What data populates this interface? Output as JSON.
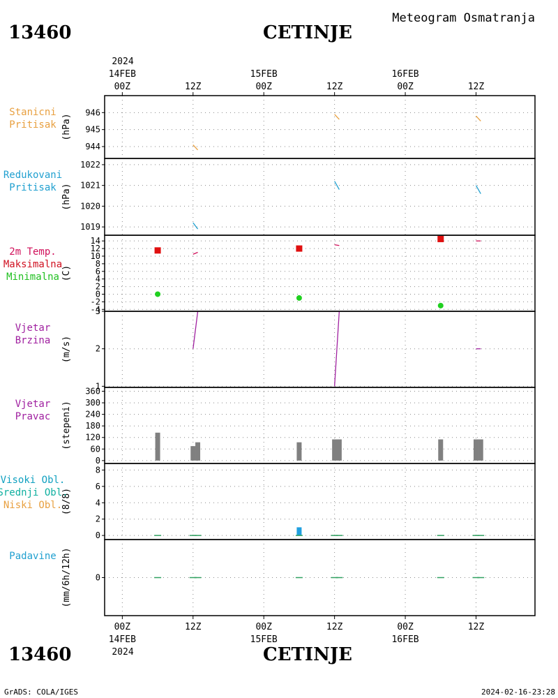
{
  "header": {
    "station_id": "13460",
    "station_name": "CETINJE",
    "product": "Meteogram Osmatranja"
  },
  "time_axis": {
    "year": "2024",
    "ticks": [
      {
        "hour": 0,
        "label": "00Z",
        "date": "14FEB"
      },
      {
        "hour": 12,
        "label": "12Z",
        "date": ""
      },
      {
        "hour": 24,
        "label": "00Z",
        "date": "15FEB"
      },
      {
        "hour": 36,
        "label": "12Z",
        "date": ""
      },
      {
        "hour": 48,
        "label": "00Z",
        "date": "16FEB"
      },
      {
        "hour": 60,
        "label": "12Z",
        "date": ""
      }
    ]
  },
  "footer": {
    "left": "GrADS: COLA/IGES",
    "right": "2024-02-16-23:28"
  },
  "chart_data": [
    {
      "type": "line",
      "panel": "station_pressure",
      "label_lines": [
        "Stanicni",
        "Pritisak"
      ],
      "label_color": "#e8a040",
      "unit": "(hPa)",
      "ylim": [
        943.3,
        947.0
      ],
      "yticks": [
        944,
        945,
        946
      ],
      "series": [
        {
          "color": "#e8a040",
          "segments": [
            [
              [
                12.0,
                944.1
              ],
              [
                12.8,
                943.8
              ]
            ],
            [
              [
                36.0,
                945.9
              ],
              [
                36.8,
                945.6
              ]
            ],
            [
              [
                60.0,
                945.8
              ],
              [
                60.8,
                945.5
              ]
            ]
          ]
        }
      ]
    },
    {
      "type": "line",
      "panel": "reduced_pressure",
      "label_lines": [
        "Redukovani",
        "Pritisak"
      ],
      "label_color": "#20a0d0",
      "unit": "(hPa)",
      "ylim": [
        1018.6,
        1022.3
      ],
      "yticks": [
        1019,
        1020,
        1021,
        1022
      ],
      "series": [
        {
          "color": "#20a0d0",
          "segments": [
            [
              [
                12.0,
                1019.2
              ],
              [
                12.8,
                1018.9
              ]
            ],
            [
              [
                36.0,
                1021.2
              ],
              [
                36.8,
                1020.8
              ]
            ],
            [
              [
                60.0,
                1021.0
              ],
              [
                60.8,
                1020.6
              ]
            ]
          ]
        }
      ]
    },
    {
      "type": "scatter",
      "panel": "temperature",
      "label_lines": [
        "2m Temp.",
        "Maksimalna",
        "Minimalna"
      ],
      "label_colors": [
        "#d0105a",
        "#d01020",
        "#20c020"
      ],
      "unit": "(C)",
      "ylim": [
        -4.5,
        15.5
      ],
      "yticks": [
        -4,
        -2,
        0,
        2,
        4,
        6,
        8,
        10,
        12,
        14
      ],
      "series": [
        {
          "color": "#d0105a",
          "segments": [
            [
              [
                12.0,
                10.5
              ],
              [
                12.8,
                11.0
              ]
            ],
            [
              [
                36.0,
                13.0
              ],
              [
                36.8,
                12.8
              ]
            ],
            [
              [
                60.0,
                14.0
              ],
              [
                60.8,
                14.0
              ]
            ]
          ]
        }
      ],
      "max_points": {
        "color": "#e01010",
        "x": [
          6,
          30,
          54
        ],
        "y": [
          11.5,
          12.0,
          14.5
        ]
      },
      "min_points": {
        "color": "#20d020",
        "x": [
          6,
          30,
          54
        ],
        "y": [
          0.0,
          -1.0,
          -3.0
        ]
      }
    },
    {
      "type": "line",
      "panel": "wind_speed",
      "label_lines": [
        "Vjetar",
        "Brzina"
      ],
      "label_color": "#a020a0",
      "unit": "(m/s)",
      "ylim": [
        0.97,
        3.0
      ],
      "yticks": [
        1,
        2,
        3
      ],
      "series": [
        {
          "color": "#a020a0",
          "segments": [
            [
              [
                12.0,
                2.0
              ],
              [
                12.8,
                3.0
              ]
            ],
            [
              [
                36.0,
                1.0
              ],
              [
                36.8,
                3.0
              ]
            ],
            [
              [
                60.0,
                2.0
              ],
              [
                60.8,
                2.0
              ]
            ]
          ]
        }
      ]
    },
    {
      "type": "bar",
      "panel": "wind_direction",
      "label_lines": [
        "Vjetar",
        "Pravac"
      ],
      "label_color": "#a020a0",
      "unit": "(stepeni)",
      "ylim": [
        -15,
        380
      ],
      "yticks": [
        0,
        60,
        120,
        180,
        240,
        300,
        360
      ],
      "bar_color": "#808080",
      "bars": [
        {
          "x": 6.0,
          "value": 145
        },
        {
          "x": 12.0,
          "value": 75
        },
        {
          "x": 12.8,
          "value": 95
        },
        {
          "x": 30.0,
          "value": 95
        },
        {
          "x": 36.0,
          "value": 110
        },
        {
          "x": 36.8,
          "value": 110
        },
        {
          "x": 54.0,
          "value": 110
        },
        {
          "x": 60.0,
          "value": 110
        },
        {
          "x": 60.8,
          "value": 110
        }
      ]
    },
    {
      "type": "bar",
      "panel": "cloud_cover",
      "label_lines": [
        "Visoki Obl.",
        "Srednji Obl.",
        "Niski Obl."
      ],
      "label_colors": [
        "#10a0c0",
        "#10b0a0",
        "#e8a040"
      ],
      "unit": "(8/8)",
      "ylim": [
        -0.5,
        8.8
      ],
      "yticks": [
        0,
        2,
        4,
        6,
        8
      ],
      "bars": [
        {
          "x": 30.0,
          "value": 1.0,
          "color": "#20a0e0"
        }
      ],
      "baseline_marks": [
        6,
        12,
        12.8,
        30,
        36,
        36.8,
        54,
        60,
        60.8
      ]
    },
    {
      "type": "bar",
      "panel": "precipitation",
      "label_lines": [
        "Padavine"
      ],
      "label_color": "#20a0d0",
      "unit": "(mm/6h/12h)",
      "ylim": [
        -4.5,
        4.5
      ],
      "yticks": [
        0
      ],
      "bars": [],
      "baseline_marks": [
        6,
        12,
        12.8,
        30,
        36,
        36.8,
        54,
        60,
        60.8
      ]
    }
  ]
}
